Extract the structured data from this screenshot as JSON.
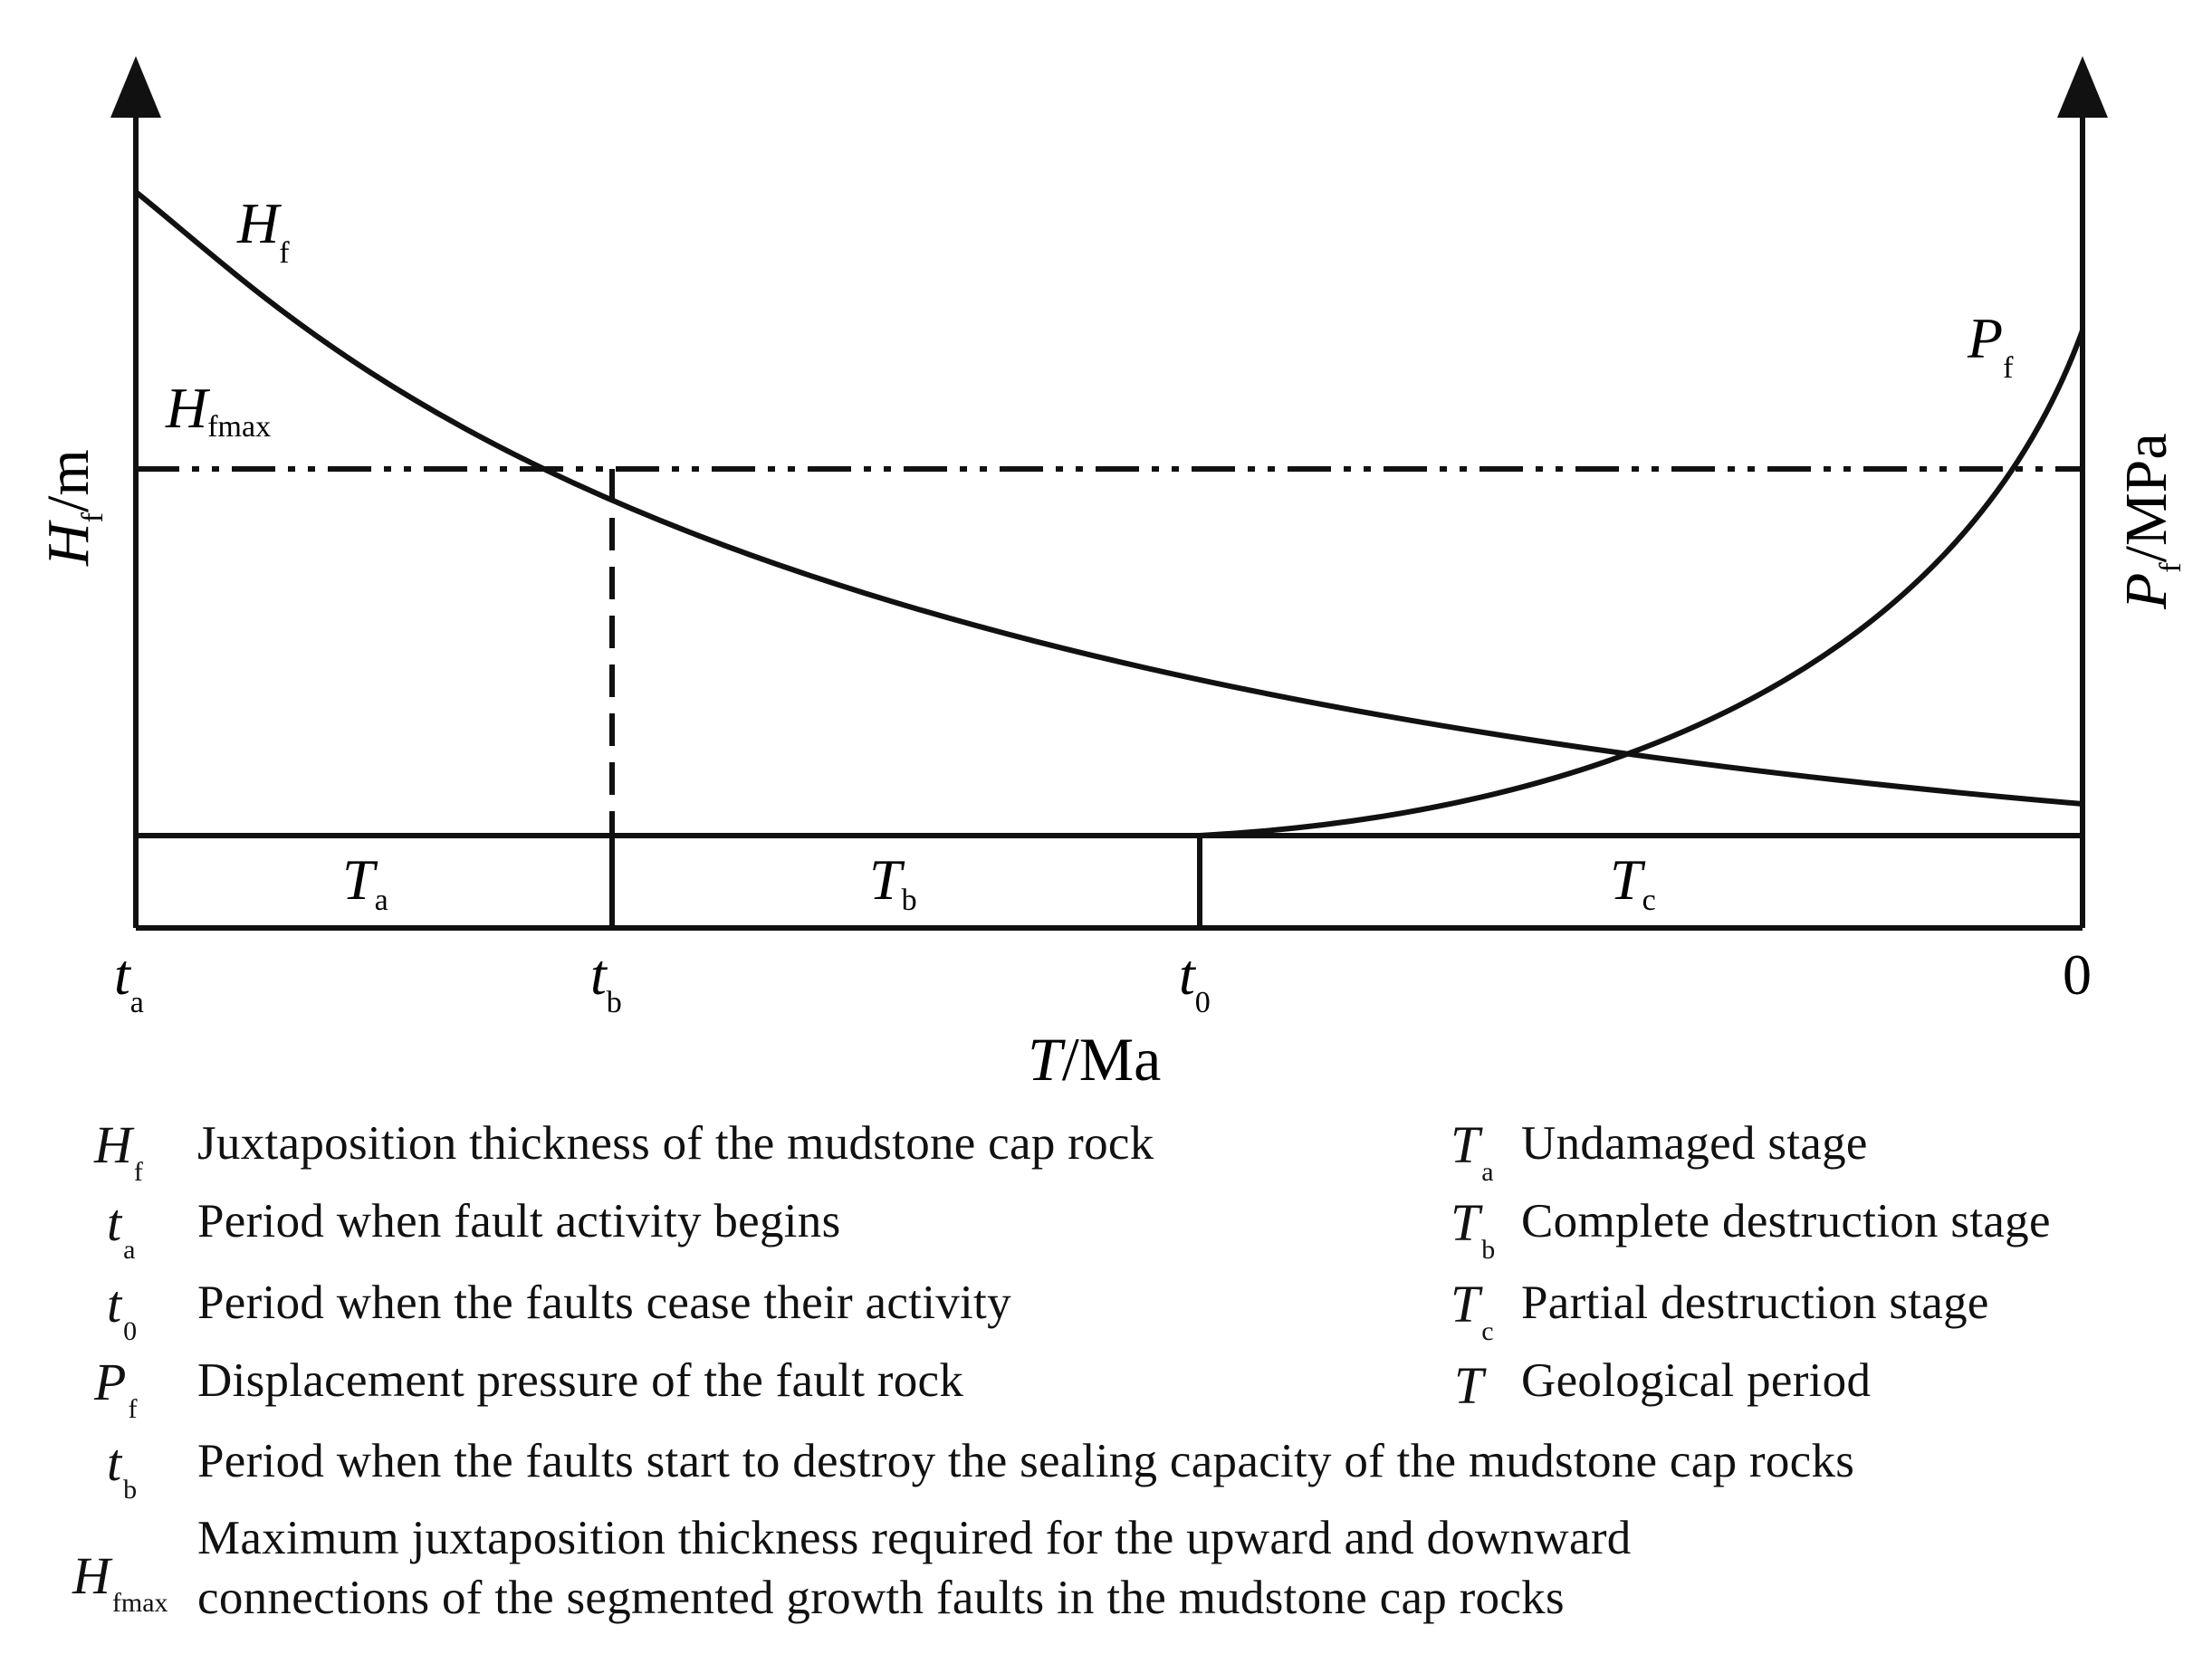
{
  "figure": {
    "axes": {
      "left_y": {
        "var": "H",
        "sub": "f",
        "unit": "/m"
      },
      "right_y": {
        "var": "P",
        "sub": "f",
        "unit": "/MPa"
      },
      "x": {
        "var": "T",
        "unit": "/Ma"
      }
    },
    "x_ticks": [
      {
        "var": "t",
        "sub": "a"
      },
      {
        "var": "t",
        "sub": "b"
      },
      {
        "var": "t",
        "sub": "0"
      },
      {
        "var": "",
        "sub": "",
        "text": "0"
      }
    ],
    "curves": {
      "hf": {
        "var": "H",
        "sub": "f"
      },
      "pf": {
        "var": "P",
        "sub": "f"
      },
      "hfmax": {
        "var": "H",
        "sub": "fmax"
      }
    },
    "stages": [
      {
        "var": "T",
        "sub": "a"
      },
      {
        "var": "T",
        "sub": "b"
      },
      {
        "var": "T",
        "sub": "c"
      }
    ]
  },
  "legend": {
    "left": [
      {
        "var": "H",
        "sub": "f",
        "text": "Juxtaposition thickness of the mudstone cap rock"
      },
      {
        "var": "t",
        "sub": "a",
        "text": "Period when fault activity begins"
      },
      {
        "var": "t",
        "sub": "0",
        "text": "Period when the faults cease their activity"
      },
      {
        "var": "P",
        "sub": "f",
        "text": "Displacement pressure of the fault rock"
      },
      {
        "var": "t",
        "sub": "b",
        "text": "Period when the faults start to destroy the sealing capacity of the mudstone cap rocks"
      },
      {
        "var": "H",
        "sub": "fmax",
        "text_line1": "Maximum juxtaposition thickness required for the upward and downward",
        "text_line2": "connections of the segmented growth faults in the mudstone cap rocks"
      }
    ],
    "right": [
      {
        "var": "T",
        "sub": "a",
        "text": "Undamaged stage"
      },
      {
        "var": "T",
        "sub": "b",
        "text": "Complete destruction stage"
      },
      {
        "var": "T",
        "sub": "c",
        "text": "Partial destruction stage"
      },
      {
        "var": "T",
        "sub": "",
        "text": "Geological period"
      }
    ]
  }
}
